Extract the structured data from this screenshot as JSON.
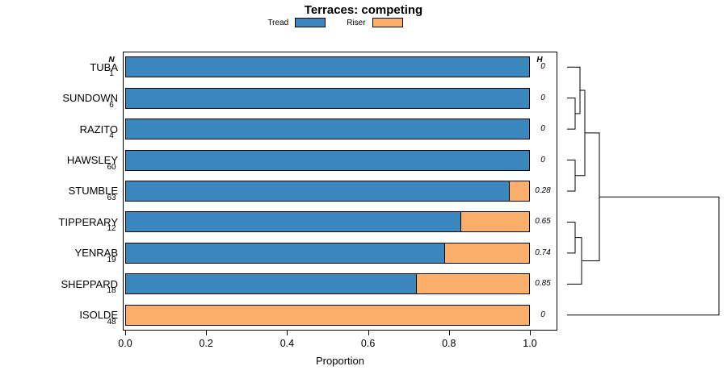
{
  "title": "Terraces: competing",
  "legend": {
    "items": [
      {
        "label": "Tread",
        "color": "#3a87be"
      },
      {
        "label": "Riser",
        "color": "#fcae6b"
      }
    ]
  },
  "chart_data": {
    "type": "bar",
    "orientation": "horizontal",
    "stacked": true,
    "title": "Terraces: competing",
    "xlabel": "Proportion",
    "xlim": [
      0,
      1.07
    ],
    "xticks": [
      0,
      0.2,
      0.4,
      0.6,
      0.8,
      1.0
    ],
    "xtick_labels": [
      "0.0",
      "0.2",
      "0.4",
      "0.6",
      "0.8",
      "1.0"
    ],
    "col_headers": {
      "n": "N",
      "h": "H"
    },
    "categories": [
      "TUBA",
      "SUNDOWN",
      "RAZITO",
      "HAWSLEY",
      "STUMBLE",
      "TIPPERARY",
      "YENRAB",
      "SHEPPARD",
      "ISOLDE"
    ],
    "n_values": [
      1,
      6,
      4,
      60,
      63,
      12,
      19,
      18,
      48
    ],
    "h_values": [
      "0",
      "0",
      "0",
      "0",
      "0.28",
      "0.65",
      "0.74",
      "0.85",
      "0"
    ],
    "series": [
      {
        "name": "Tread",
        "color": "#3a87be",
        "values": [
          1,
          1,
          1,
          1,
          0.95,
          0.83,
          0.79,
          0.72,
          0
        ]
      },
      {
        "name": "Riser",
        "color": "#fcae6b",
        "values": [
          0,
          0,
          0,
          0,
          0.05,
          0.17,
          0.21,
          0.28,
          1
        ]
      }
    ],
    "legend_position": "top",
    "grid": false
  },
  "dendrogram": {
    "leaf_order": [
      "TUBA",
      "SUNDOWN",
      "RAZITO",
      "HAWSLEY",
      "STUMBLE",
      "TIPPERARY",
      "YENRAB",
      "SHEPPARD",
      "ISOLDE"
    ],
    "segments": [
      [
        [
          0,
          2
        ],
        [
          10,
          2
        ],
        [
          10,
          3
        ],
        [
          0,
          3
        ]
      ],
      [
        [
          0,
          1
        ],
        [
          16,
          1
        ],
        [
          16,
          2.5
        ],
        [
          10,
          2.5
        ]
      ],
      [
        [
          0,
          4
        ],
        [
          10,
          4
        ],
        [
          10,
          5
        ],
        [
          0,
          5
        ]
      ],
      [
        [
          16,
          1.75
        ],
        [
          22,
          1.75
        ],
        [
          22,
          4.5
        ],
        [
          10,
          4.5
        ]
      ],
      [
        [
          0,
          6
        ],
        [
          10,
          6
        ],
        [
          10,
          7
        ],
        [
          0,
          7
        ]
      ],
      [
        [
          10,
          6.5
        ],
        [
          18,
          6.5
        ],
        [
          18,
          8
        ],
        [
          0,
          8
        ]
      ],
      [
        [
          22,
          3.125
        ],
        [
          40,
          3.125
        ],
        [
          40,
          7.25
        ],
        [
          18,
          7.25
        ]
      ],
      [
        [
          40,
          5.1875
        ],
        [
          188,
          5.1875
        ],
        [
          188,
          9
        ],
        [
          0,
          9
        ]
      ]
    ]
  }
}
